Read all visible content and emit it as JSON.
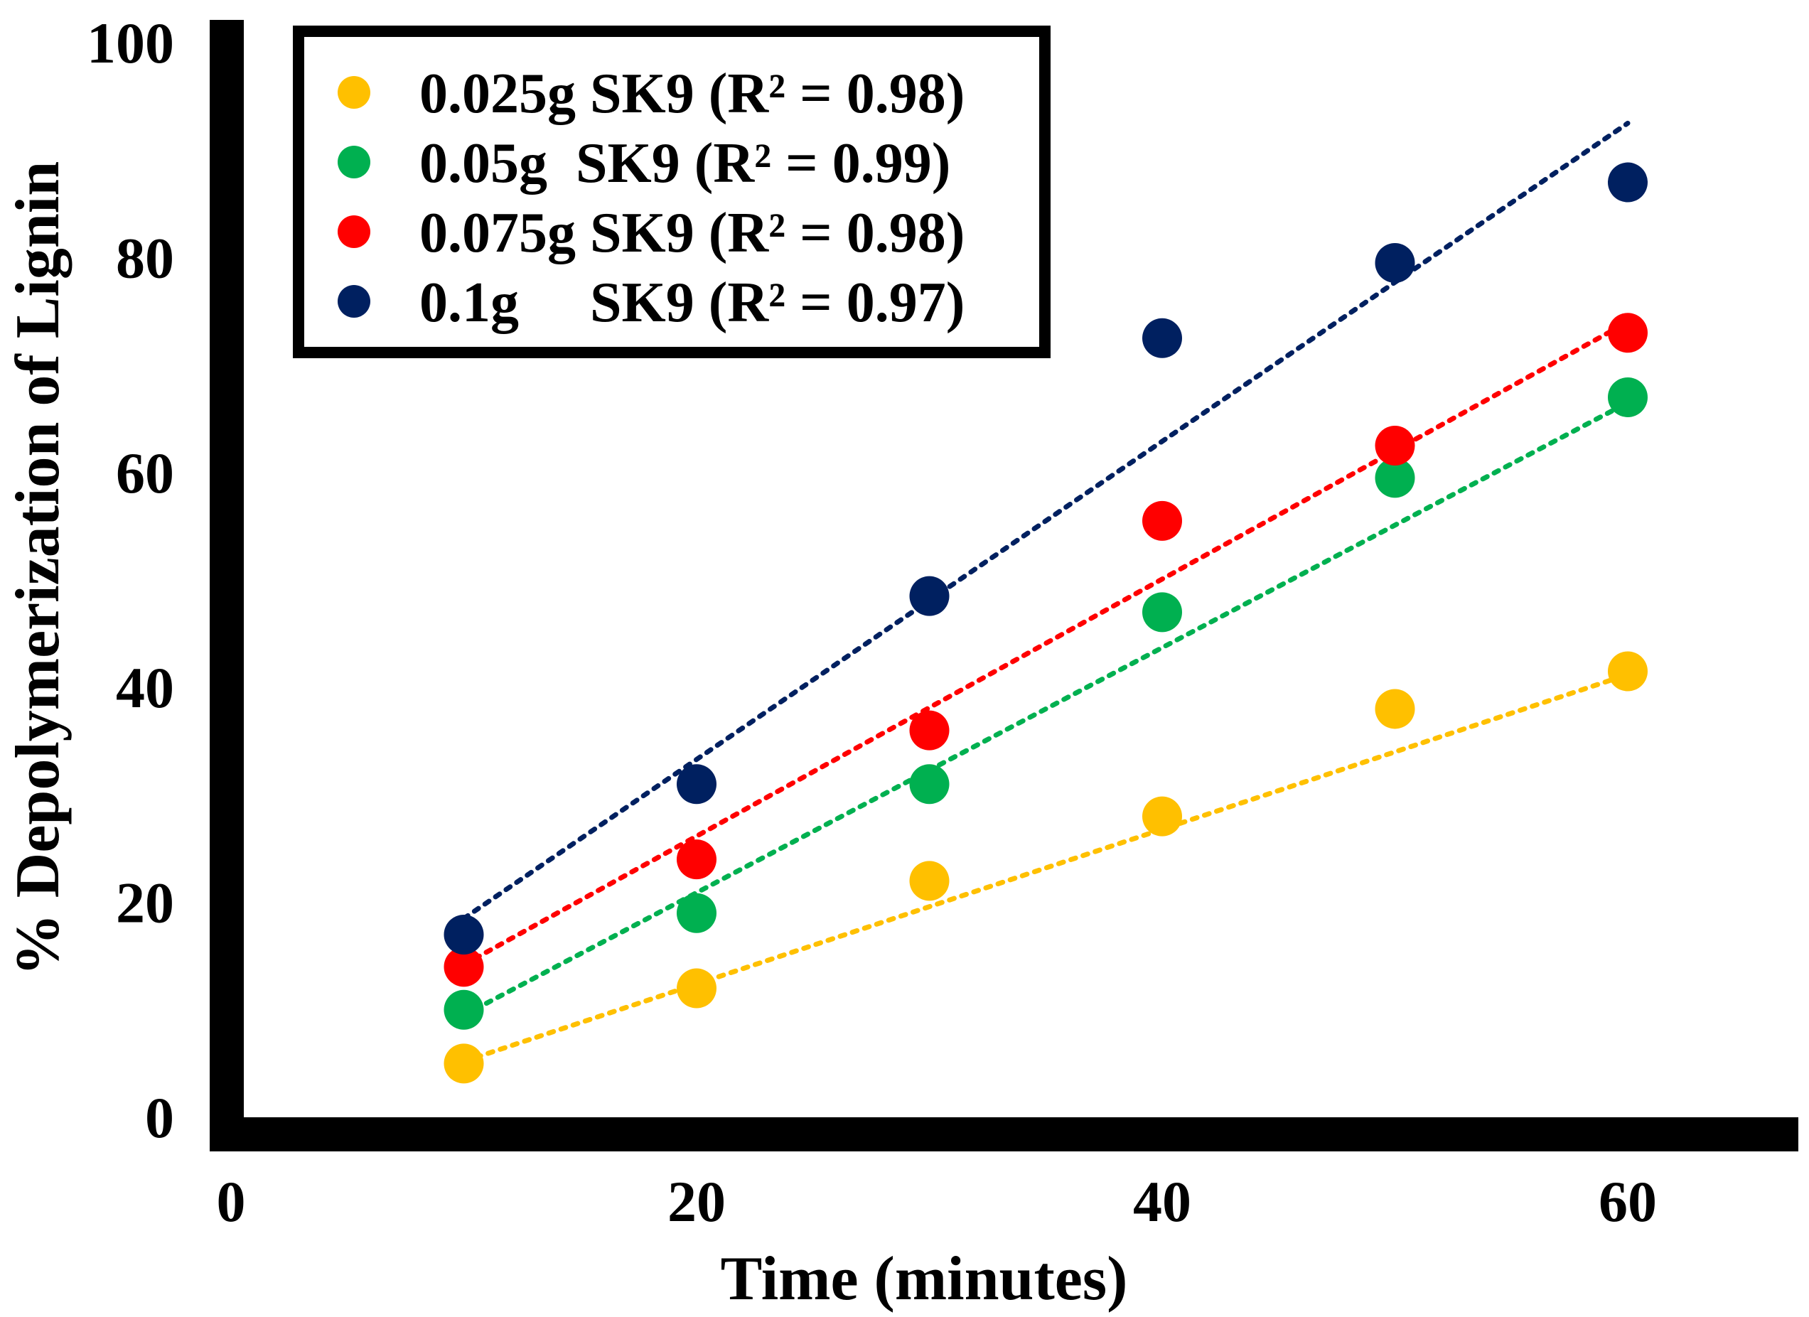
{
  "chart_data": {
    "type": "scatter",
    "title": "",
    "xlabel": "Time (minutes)",
    "ylabel": "% Depolymerization of Lignin",
    "xlim": [
      0,
      67
    ],
    "ylim": [
      0,
      100
    ],
    "xticks": [
      "0",
      "20",
      "40",
      "60"
    ],
    "yticks": [
      "0",
      "20",
      "40",
      "60",
      "80",
      "100"
    ],
    "grid": false,
    "legend_position": "top-left",
    "x": [
      10,
      20,
      30,
      40,
      50,
      60
    ],
    "series": [
      {
        "name": "0.025g SK9",
        "legend_label": "0.025g SK9 (R² = 0.98)",
        "color": "#FFC000",
        "values": [
          5,
          12,
          22,
          28,
          38,
          41.5
        ],
        "trendline": [
          5.2,
          41.2
        ]
      },
      {
        "name": "0.05g SK9",
        "legend_label": "0.05g  SK9 (R² = 0.99)",
        "color": "#00B050",
        "values": [
          10,
          19,
          31,
          47,
          59.5,
          67
        ],
        "trendline": [
          9.5,
          66.5
        ]
      },
      {
        "name": "0.075g SK9",
        "legend_label": "0.075g SK9 (R² = 0.98)",
        "color": "#FF0000",
        "values": [
          14,
          24,
          36,
          55.5,
          62.5,
          73
        ],
        "trendline": [
          14.2,
          74
        ]
      },
      {
        "name": "0.1g SK9",
        "legend_label": "0.1g     SK9 (R² = 0.97)",
        "color": "#002060",
        "values": [
          17,
          31,
          48.5,
          72.5,
          79.5,
          87
        ],
        "trendline": [
          18.5,
          92.5
        ]
      }
    ]
  }
}
